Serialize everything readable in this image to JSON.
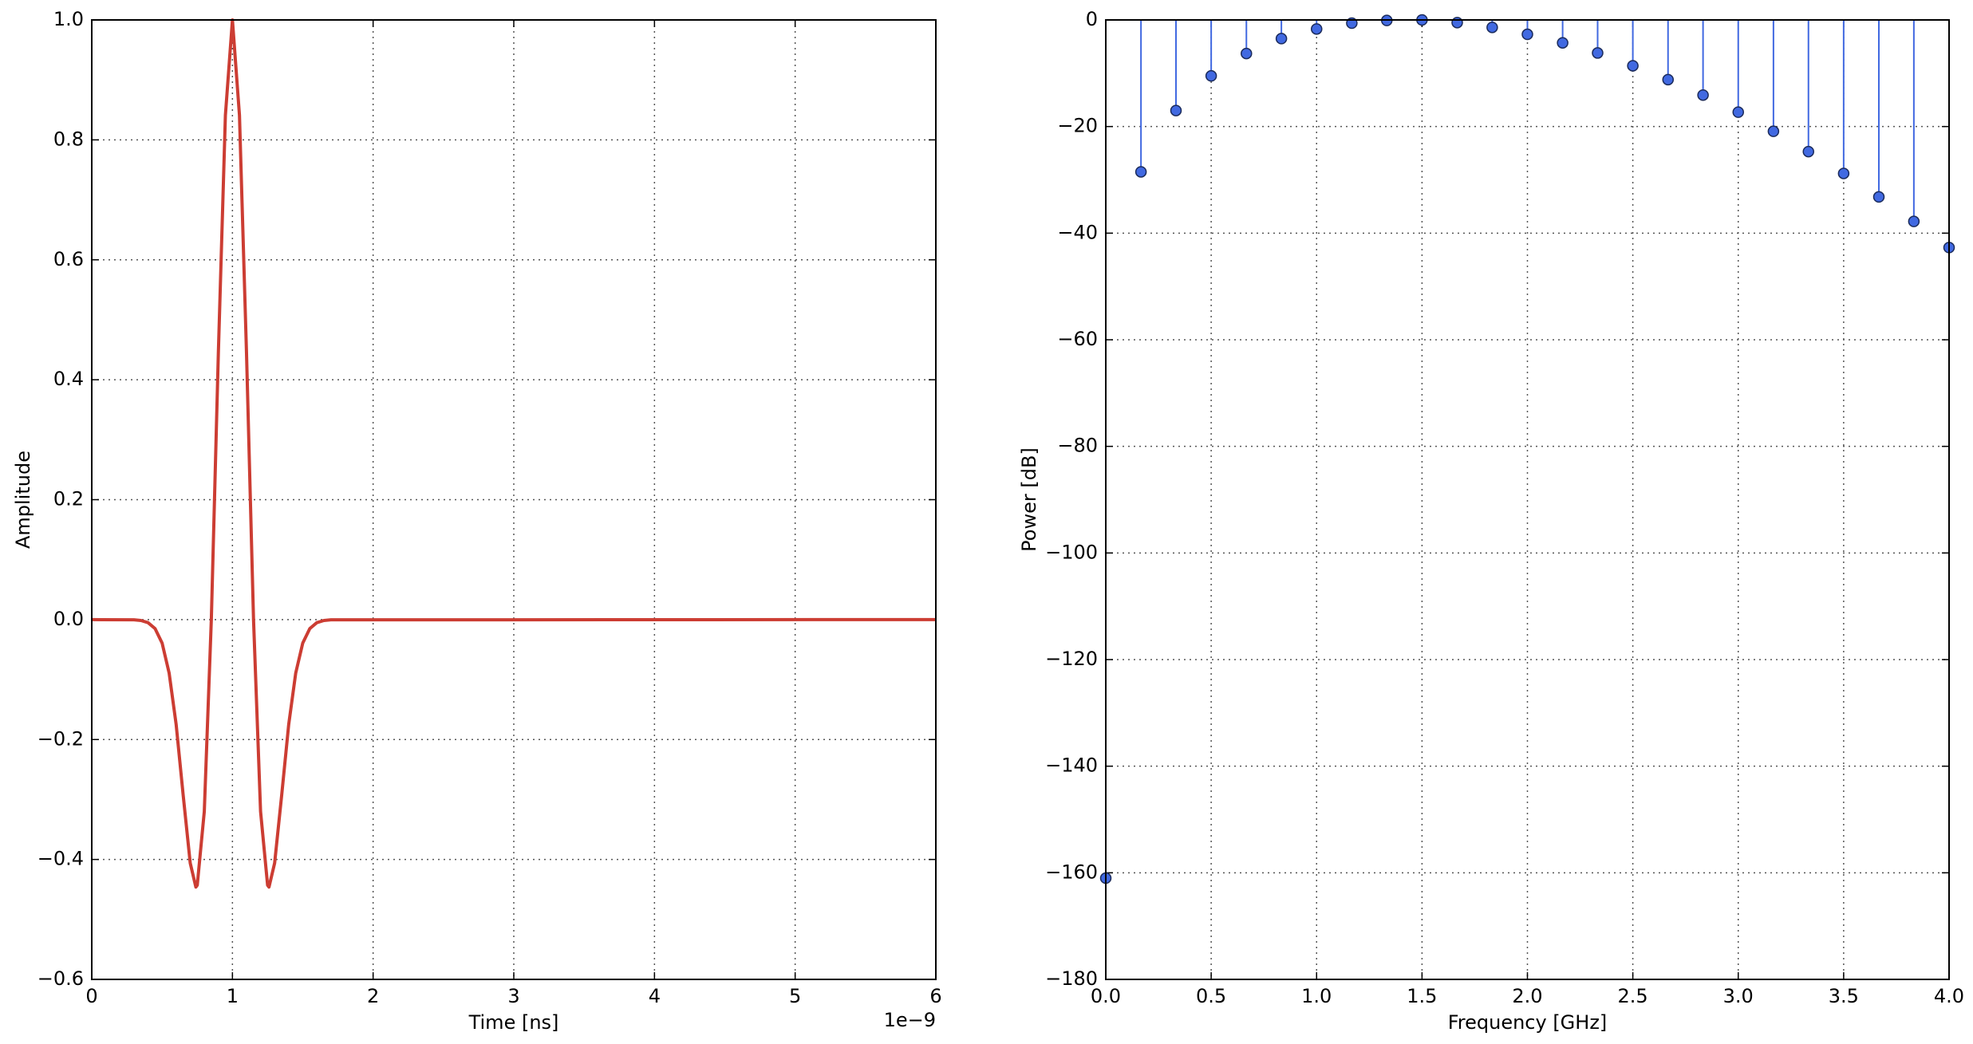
{
  "chart_data": [
    {
      "type": "line",
      "xlabel": "Time [ns]",
      "ylabel": "Amplitude",
      "annotation": "1e−9",
      "x": [
        0,
        0.3,
        0.35,
        0.4,
        0.45,
        0.5,
        0.55,
        0.6,
        0.65,
        0.7,
        0.74,
        0.75,
        0.8,
        0.85,
        0.9,
        0.95,
        1.0,
        1.05,
        1.1,
        1.15,
        1.2,
        1.25,
        1.26,
        1.3,
        1.35,
        1.4,
        1.45,
        1.5,
        1.55,
        1.6,
        1.65,
        1.7,
        6
      ],
      "series": [
        {
          "color": "#cc3d33",
          "values": [
            0,
            -0.0004,
            -0.0015,
            -0.0051,
            -0.015,
            -0.039,
            -0.089,
            -0.175,
            -0.293,
            -0.406,
            -0.446,
            -0.443,
            -0.32,
            0,
            0.445,
            0.841,
            1,
            0.841,
            0.445,
            0,
            -0.32,
            -0.443,
            -0.446,
            -0.406,
            -0.293,
            -0.175,
            -0.089,
            -0.039,
            -0.015,
            -0.0051,
            -0.0015,
            -0.0004,
            0
          ]
        }
      ],
      "xlim": [
        0,
        6
      ],
      "xticks": [
        0,
        1,
        2,
        3,
        4,
        5,
        6
      ],
      "ylim": [
        -0.6,
        1.0
      ],
      "yticks": [
        {
          "value": -0.6,
          "label": "−0.6"
        },
        {
          "value": -0.4,
          "label": "−0.4"
        },
        {
          "value": -0.2,
          "label": "−0.2"
        },
        {
          "value": 0,
          "label": "0.0"
        },
        {
          "value": 0.2,
          "label": "0.2"
        },
        {
          "value": 0.4,
          "label": "0.4"
        },
        {
          "value": 0.6,
          "label": "0.6"
        },
        {
          "value": 0.8,
          "label": "0.8"
        },
        {
          "value": 1,
          "label": "1.0"
        }
      ],
      "grid": true
    },
    {
      "type": "stem",
      "xlabel": "Frequency [GHz]",
      "ylabel": "Power [dB]",
      "x": [
        0,
        0.167,
        0.333,
        0.5,
        0.667,
        0.833,
        1.0,
        1.167,
        1.333,
        1.5,
        1.667,
        1.833,
        2.0,
        2.167,
        2.333,
        2.5,
        2.667,
        2.833,
        3.0,
        3.167,
        3.333,
        3.5,
        3.667,
        3.833,
        4.0
      ],
      "series": [
        {
          "color": "#4169e1",
          "values": [
            -161,
            -28.5,
            -17,
            -10.5,
            -6.3,
            -3.5,
            -1.7,
            -0.6,
            -0.1,
            0,
            -0.5,
            -1.4,
            -2.7,
            -4.3,
            -6.2,
            -8.6,
            -11.2,
            -14.1,
            -17.3,
            -20.9,
            -24.7,
            -28.8,
            -33.2,
            -37.8,
            -42.7
          ]
        }
      ],
      "xlim": [
        0,
        4
      ],
      "xticks": [
        {
          "value": 0,
          "label": "0.0"
        },
        {
          "value": 0.5,
          "label": "0.5"
        },
        {
          "value": 1,
          "label": "1.0"
        },
        {
          "value": 1.5,
          "label": "1.5"
        },
        {
          "value": 2,
          "label": "2.0"
        },
        {
          "value": 2.5,
          "label": "2.5"
        },
        {
          "value": 3,
          "label": "3.0"
        },
        {
          "value": 3.5,
          "label": "3.5"
        },
        {
          "value": 4,
          "label": "4.0"
        }
      ],
      "ylim": [
        -180,
        0
      ],
      "yticks": [
        {
          "value": -180,
          "label": "−180"
        },
        {
          "value": -160,
          "label": "−160"
        },
        {
          "value": -140,
          "label": "−140"
        },
        {
          "value": -120,
          "label": "−120"
        },
        {
          "value": -100,
          "label": "−100"
        },
        {
          "value": -80,
          "label": "−80"
        },
        {
          "value": -60,
          "label": "−60"
        },
        {
          "value": -40,
          "label": "−40"
        },
        {
          "value": -20,
          "label": "−20"
        },
        0
      ],
      "grid": true
    }
  ]
}
